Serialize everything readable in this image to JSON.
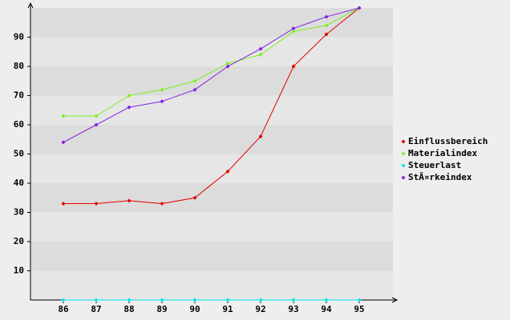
{
  "chart_data": {
    "type": "line",
    "categories": [
      "86",
      "87",
      "88",
      "89",
      "90",
      "91",
      "92",
      "93",
      "94",
      "95"
    ],
    "series": [
      {
        "name": "Einflussbereich",
        "color": "#e00000",
        "values": [
          33,
          33,
          34,
          33,
          35,
          44,
          56,
          80,
          91,
          100
        ]
      },
      {
        "name": "Materialindex",
        "color": "#80ee20",
        "values": [
          63,
          63,
          70,
          72,
          75,
          81,
          84,
          92,
          94,
          100
        ]
      },
      {
        "name": "Steuerlast",
        "color": "#00e5ee",
        "values": [
          0,
          0,
          0,
          0,
          0,
          0,
          0,
          0,
          0,
          0
        ]
      },
      {
        "name": "StÃ¤rkeindex",
        "color": "#8020e0",
        "values": [
          54,
          60,
          66,
          68,
          72,
          80,
          86,
          93,
          97,
          100
        ]
      }
    ],
    "ylim": [
      0,
      100
    ],
    "yticks": [
      10,
      20,
      30,
      40,
      50,
      60,
      70,
      80,
      90
    ],
    "grid": true,
    "legend": "right"
  }
}
